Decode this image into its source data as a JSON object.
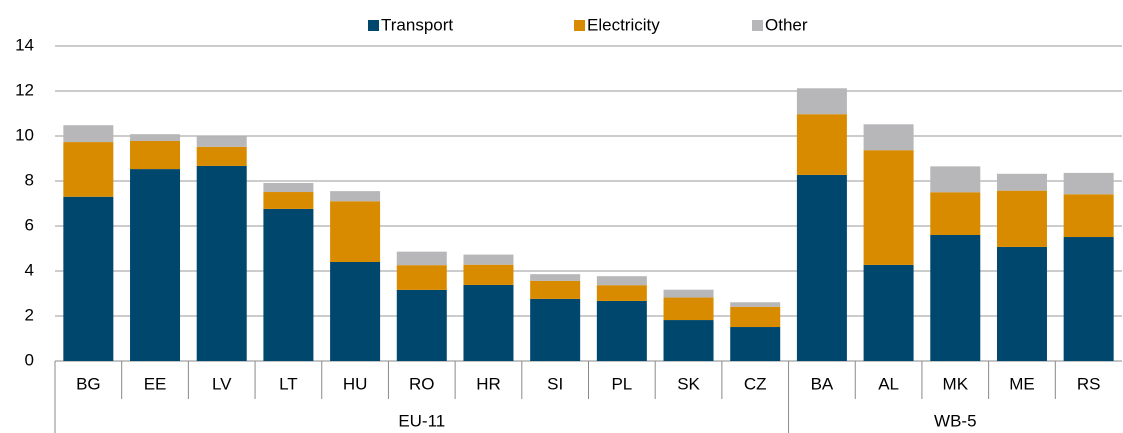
{
  "chart_data": {
    "type": "stacked_bar",
    "categories": [
      "BG",
      "EE",
      "LV",
      "LT",
      "HU",
      "RO",
      "HR",
      "SI",
      "PL",
      "SK",
      "CZ",
      "BA",
      "AL",
      "MK",
      "ME",
      "RS"
    ],
    "groups": [
      {
        "name": "EU-11",
        "size": 11
      },
      {
        "name": "WB-5",
        "size": 5
      }
    ],
    "series": [
      {
        "name": "Transport",
        "color": "#00476e",
        "values": [
          7.3,
          8.53,
          8.67,
          6.76,
          4.4,
          3.16,
          3.38,
          2.76,
          2.67,
          1.82,
          1.51,
          8.27,
          4.27,
          5.6,
          5.07,
          5.51
        ]
      },
      {
        "name": "Electricity",
        "color": "#d98b00",
        "values": [
          2.43,
          1.25,
          0.85,
          0.75,
          2.7,
          1.1,
          0.9,
          0.8,
          0.7,
          1.0,
          0.9,
          2.7,
          5.1,
          1.9,
          2.5,
          1.9
        ]
      },
      {
        "name": "Other",
        "color": "#b7b7b9",
        "values": [
          0.75,
          0.3,
          0.45,
          0.4,
          0.45,
          0.6,
          0.45,
          0.3,
          0.4,
          0.35,
          0.2,
          1.15,
          1.15,
          1.15,
          0.75,
          0.95
        ]
      }
    ],
    "ylim": [
      0,
      14
    ],
    "yticks": [
      0,
      2,
      4,
      6,
      8,
      10,
      12,
      14
    ],
    "grid": true,
    "legend": "top"
  }
}
